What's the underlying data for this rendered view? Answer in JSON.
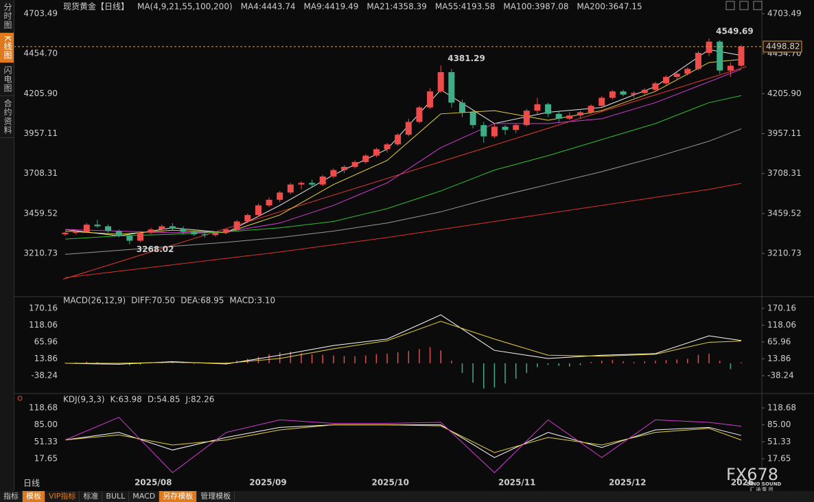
{
  "chart_data": [
    {
      "type": "candlestick",
      "title": "现货黄金【日线】",
      "ma_params": "MA(4,9,21,55,100,200)",
      "ylim": [
        2950,
        4755
      ],
      "yticks": [
        4703.49,
        {
          "value": 4454.7,
          "label": "4454.70"
        },
        {
          "value": 4205.9,
          "label": "4205.90"
        },
        3957.11,
        3708.31,
        3459.52,
        3210.73
      ],
      "up_color": "#ee4b4b",
      "down_color": "#3fae86",
      "candles": [
        [
          3330,
          3345,
          3320,
          3340
        ],
        [
          3340,
          3360,
          3330,
          3345
        ],
        [
          3345,
          3400,
          3340,
          3390
        ],
        [
          3390,
          3420,
          3370,
          3380
        ],
        [
          3380,
          3390,
          3340,
          3350
        ],
        [
          3350,
          3360,
          3310,
          3320
        ],
        [
          3320,
          3330,
          3268.02,
          3290
        ],
        [
          3290,
          3350,
          3280,
          3340
        ],
        [
          3340,
          3370,
          3330,
          3360
        ],
        [
          3360,
          3390,
          3340,
          3380
        ],
        [
          3380,
          3400,
          3355,
          3365
        ],
        [
          3365,
          3380,
          3330,
          3345
        ],
        [
          3345,
          3355,
          3320,
          3330
        ],
        [
          3330,
          3345,
          3310,
          3325
        ],
        [
          3325,
          3345,
          3315,
          3340
        ],
        [
          3340,
          3365,
          3330,
          3360
        ],
        [
          3360,
          3420,
          3355,
          3410
        ],
        [
          3410,
          3460,
          3400,
          3450
        ],
        [
          3450,
          3520,
          3440,
          3510
        ],
        [
          3510,
          3560,
          3500,
          3545
        ],
        [
          3545,
          3600,
          3530,
          3590
        ],
        [
          3590,
          3650,
          3580,
          3640
        ],
        [
          3640,
          3660,
          3610,
          3650
        ],
        [
          3650,
          3670,
          3620,
          3640
        ],
        [
          3640,
          3700,
          3630,
          3690
        ],
        [
          3690,
          3740,
          3680,
          3730
        ],
        [
          3730,
          3760,
          3710,
          3750
        ],
        [
          3750,
          3790,
          3740,
          3780
        ],
        [
          3780,
          3830,
          3770,
          3820
        ],
        [
          3820,
          3870,
          3810,
          3860
        ],
        [
          3860,
          3900,
          3840,
          3890
        ],
        [
          3890,
          3960,
          3880,
          3950
        ],
        [
          3950,
          4050,
          3940,
          4030
        ],
        [
          4030,
          4130,
          4020,
          4120
        ],
        [
          4120,
          4240,
          4110,
          4220
        ],
        [
          4220,
          4381.29,
          4210,
          4340
        ],
        [
          4340,
          4360,
          4120,
          4150
        ],
        [
          4150,
          4170,
          4060,
          4090
        ],
        [
          4090,
          4110,
          3990,
          4010
        ],
        [
          4010,
          4030,
          3900,
          3940
        ],
        [
          3940,
          4020,
          3930,
          4000
        ],
        [
          4000,
          4010,
          3950,
          3980
        ],
        [
          3980,
          4020,
          3960,
          4010
        ],
        [
          4010,
          4110,
          4000,
          4100
        ],
        [
          4100,
          4180,
          4080,
          4140
        ],
        [
          4140,
          4150,
          4060,
          4080
        ],
        [
          4080,
          4100,
          4030,
          4050
        ],
        [
          4050,
          4090,
          4040,
          4070
        ],
        [
          4070,
          4100,
          4050,
          4090
        ],
        [
          4090,
          4140,
          4080,
          4130
        ],
        [
          4130,
          4190,
          4120,
          4180
        ],
        [
          4180,
          4230,
          4170,
          4220
        ],
        [
          4220,
          4230,
          4190,
          4200
        ],
        [
          4200,
          4220,
          4180,
          4210
        ],
        [
          4210,
          4240,
          4200,
          4230
        ],
        [
          4230,
          4280,
          4220,
          4270
        ],
        [
          4270,
          4320,
          4260,
          4310
        ],
        [
          4310,
          4340,
          4290,
          4330
        ],
        [
          4330,
          4370,
          4320,
          4360
        ],
        [
          4360,
          4470,
          4350,
          4460
        ],
        [
          4460,
          4549.69,
          4440,
          4530
        ],
        [
          4530,
          4540,
          4330,
          4350
        ],
        [
          4350,
          4400,
          4310,
          4380
        ],
        [
          4380,
          4510,
          4370,
          4498.82
        ]
      ],
      "ma_x": [
        0,
        5,
        10,
        15,
        20,
        25,
        30,
        35,
        40,
        45,
        50,
        55,
        60,
        63
      ],
      "series": [
        {
          "name": "MA4:4443.74",
          "color": "#e8e8e8",
          "values": [
            3360,
            3320,
            3370,
            3340,
            3510,
            3700,
            3860,
            4230,
            4020,
            4090,
            4120,
            4250,
            4480,
            4443.74
          ]
        },
        {
          "name": "MA9:4419.49",
          "color": "#e6d23a",
          "values": [
            3350,
            3330,
            3355,
            3340,
            3450,
            3640,
            3790,
            4080,
            4100,
            4040,
            4100,
            4220,
            4400,
            4419.49
          ]
        },
        {
          "name": "MA21:4358.39",
          "color": "#d43bd4",
          "values": [
            3360,
            3350,
            3340,
            3345,
            3400,
            3510,
            3650,
            3870,
            4020,
            4020,
            4050,
            4150,
            4280,
            4358.39
          ]
        },
        {
          "name": "MA55:4193.58",
          "color": "#2fbf2f",
          "values": [
            3300,
            3320,
            3330,
            3345,
            3370,
            3410,
            3490,
            3600,
            3730,
            3820,
            3920,
            4020,
            4150,
            4193.58
          ]
        },
        {
          "name": "MA100:3987.08",
          "color": "#9a9a9a",
          "values": [
            3205,
            3230,
            3255,
            3280,
            3310,
            3350,
            3400,
            3470,
            3560,
            3640,
            3720,
            3810,
            3910,
            3987.08
          ]
        },
        {
          "name": "MA200:3647.15",
          "color": "#e03030",
          "values": [
            3060,
            3100,
            3140,
            3180,
            3220,
            3265,
            3310,
            3360,
            3410,
            3460,
            3510,
            3560,
            3610,
            3647.15
          ]
        }
      ],
      "trendline": {
        "x": [
          0,
          63.5
        ],
        "values": [
          3050,
          4375
        ],
        "color": "#e53935"
      },
      "annotations": [
        {
          "index": 35,
          "value": 4381.29,
          "color": "#f04b4b"
        },
        {
          "index": 60,
          "value": 4549.69,
          "color": "#f04b4b"
        },
        {
          "index": 6,
          "value": 3268.02,
          "color": "#4fbf8f"
        }
      ],
      "last_price": 4498.82,
      "xlabels": [
        {
          "index": 8.2,
          "label": "2025/08"
        },
        {
          "index": 18.9,
          "label": "2025/09"
        },
        {
          "index": 30.3,
          "label": "2025/10"
        },
        {
          "index": 42.1,
          "label": "2025/11"
        },
        {
          "index": 52.4,
          "label": "2025/12"
        },
        {
          "index": 63.1,
          "label": "2026"
        }
      ],
      "period": "日线"
    },
    {
      "type": "macd",
      "title": "MACD(26,12,9)",
      "ylim": [
        -91.4,
        182.9
      ],
      "yticks": [
        170.16,
        118.06,
        65.96,
        13.86,
        -38.24
      ],
      "x": [
        0,
        5,
        10,
        15,
        20,
        25,
        30,
        35,
        40,
        45,
        50,
        55,
        60,
        63
      ],
      "series": [
        {
          "name": "DIFF:70.50",
          "color": "#ffffff",
          "values": [
            0,
            -3,
            5,
            -2,
            25,
            55,
            75,
            150,
            40,
            15,
            25,
            30,
            85,
            70.5
          ]
        },
        {
          "name": "DEA:68.95",
          "color": "#e6d23a",
          "values": [
            0,
            0,
            3,
            0,
            15,
            45,
            70,
            130,
            75,
            25,
            22,
            28,
            65,
            68.95
          ]
        }
      ],
      "histogram": {
        "name": "MACD:3.10",
        "color": "#d43bd4",
        "up_color": "#e05050",
        "down_color": "#3fae86",
        "values": [
          2,
          3,
          5,
          4,
          1,
          -3,
          -6,
          -4,
          2,
          4,
          3,
          1,
          -2,
          -1,
          1,
          3,
          8,
          14,
          20,
          28,
          34,
          36,
          32,
          28,
          26,
          24,
          22,
          22,
          24,
          28,
          30,
          34,
          38,
          44,
          50,
          40,
          8,
          -30,
          -60,
          -78,
          -75,
          -62,
          -48,
          -30,
          -12,
          -5,
          -8,
          -10,
          -6,
          4,
          8,
          10,
          6,
          4,
          6,
          8,
          10,
          12,
          14,
          26,
          30,
          8,
          -18,
          3.1
        ]
      }
    },
    {
      "type": "kdj",
      "title": "KDJ(9,3,3)",
      "ylim": [
        -42.4,
        144.6
      ],
      "yticks": [
        118.68,
        {
          "value": 85,
          "label": "85.00"
        },
        51.33,
        17.65
      ],
      "x": [
        0,
        5,
        10,
        15,
        20,
        25,
        30,
        35,
        40,
        45,
        50,
        55,
        60,
        63
      ],
      "series": [
        {
          "name": "K:63.98",
          "color": "#ffffff",
          "values": [
            55,
            70,
            35,
            60,
            80,
            85,
            85,
            85,
            20,
            70,
            40,
            75,
            80,
            63.98
          ]
        },
        {
          "name": "D:54.85",
          "color": "#e6d23a",
          "values": [
            55,
            65,
            45,
            55,
            75,
            85,
            85,
            83,
            30,
            60,
            45,
            70,
            78,
            54.85
          ]
        },
        {
          "name": "J:82.26",
          "color": "#d43bd4",
          "values": [
            55,
            100,
            -10,
            70,
            95,
            88,
            88,
            90,
            -10,
            95,
            20,
            95,
            90,
            82.26
          ]
        }
      ]
    }
  ],
  "sidebar": [
    "分时图",
    "K线图",
    "闪电图",
    "合约资料"
  ],
  "tabs": [
    "指标",
    "模板",
    "VIP指标",
    "标准",
    "BULL",
    "MACD",
    "另存模板",
    "管理模板"
  ],
  "watermark": {
    "brand": "FX678",
    "sub": "SINO SOUND",
    "cn": "汇 通 集 团"
  }
}
